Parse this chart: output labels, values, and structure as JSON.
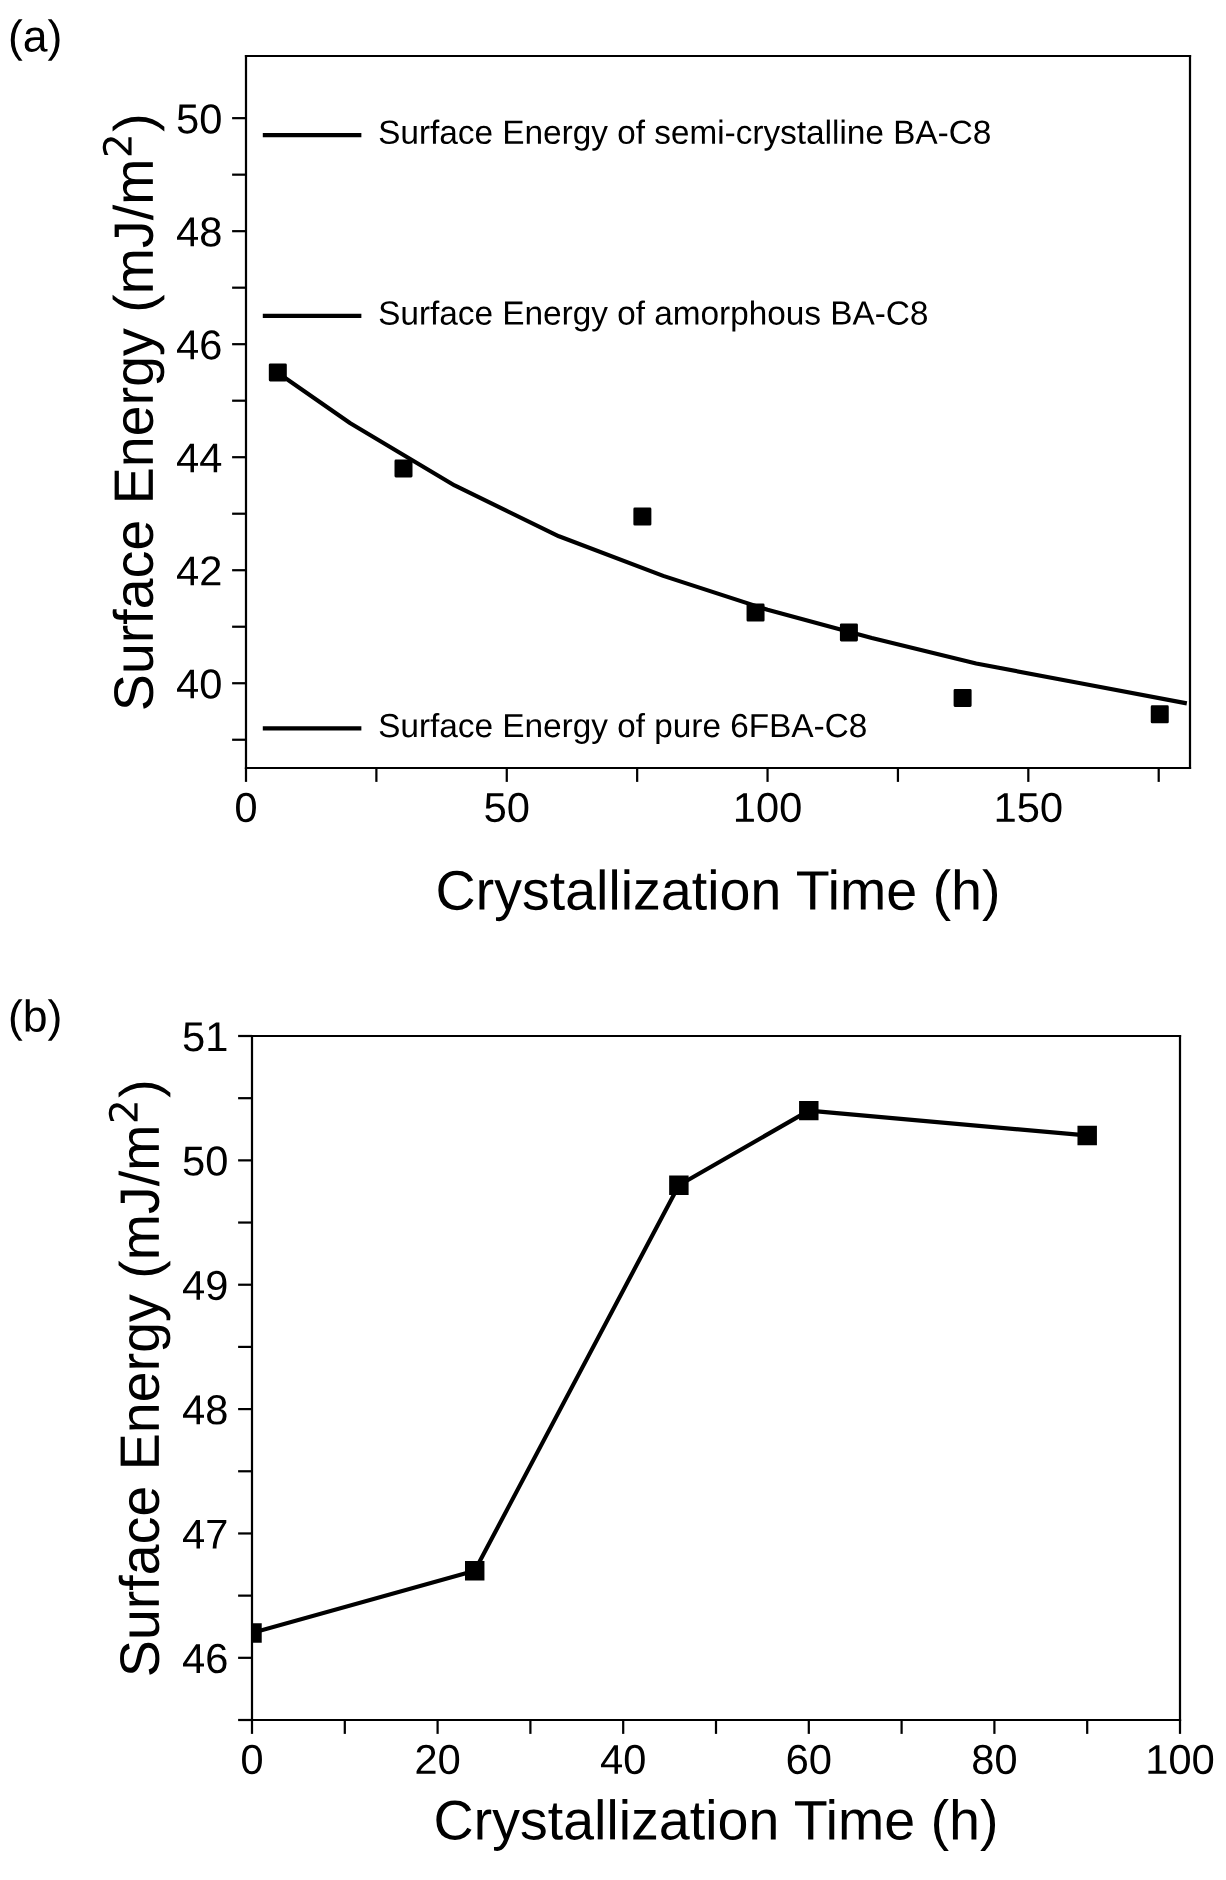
{
  "chart_data": [
    {
      "type": "scatter",
      "title": "(a)",
      "xlabel": "Crystallization Time (h)",
      "ylabel": "Surface Energy (mJ/m$^{2}$)",
      "xlim": [
        0,
        181
      ],
      "ylim": [
        38.5,
        51.1
      ],
      "xticks": [
        0,
        {
          "value": 25,
          "label": null
        },
        50,
        {
          "value": 75,
          "label": null
        },
        100,
        {
          "value": 125,
          "label": null
        },
        150,
        {
          "value": 175,
          "label": null
        }
      ],
      "yticks": [
        {
          "value": 39,
          "label": null
        },
        40,
        {
          "value": 41,
          "label": null
        },
        42,
        {
          "value": 43,
          "label": null
        },
        44,
        {
          "value": 45,
          "label": null
        },
        46,
        {
          "value": 47,
          "label": null
        },
        48,
        {
          "value": 49,
          "label": null
        },
        50
      ],
      "grid": false,
      "legend": false,
      "series": [
        {
          "type": "scatter",
          "color": "#000000",
          "marker": "square",
          "x": [
            6.1,
            30.2,
            76,
            97.7,
            115.6,
            137.4,
            175.2
          ],
          "values": [
            45.5,
            43.8,
            42.95,
            41.25,
            40.9,
            39.74,
            39.45
          ]
        },
        {
          "type": "line",
          "color": "#000000",
          "marker": "none",
          "line_style": "solid",
          "x": [
            6,
            20,
            40,
            60,
            80,
            100,
            120,
            140,
            160,
            180
          ],
          "values": [
            45.5,
            44.6,
            43.5,
            42.6,
            41.9,
            41.3,
            40.8,
            40.35,
            40.0,
            39.65
          ]
        }
      ],
      "ref_lines": [
        {
          "axis": "y",
          "value": 49.7,
          "label": "Surface Energy of semi-crystalline BA-C8",
          "color": "#000000",
          "line_style": "solid"
        },
        {
          "axis": "y",
          "value": 46.5,
          "label": "Surface Energy of amorphous BA-C8",
          "color": "#000000",
          "line_style": "solid"
        },
        {
          "axis": "y",
          "value": 39.2,
          "label": "Surface Energy of pure 6FBA-C8",
          "color": "#000000",
          "line_style": "solid"
        }
      ]
    },
    {
      "type": "line",
      "title": "(b)",
      "xlabel": "Crystallization Time (h)",
      "ylabel": "Surface Energy (mJ/m$^{2}$)",
      "xlim": [
        0,
        100
      ],
      "ylim": [
        45.5,
        51
      ],
      "xticks": [
        0,
        {
          "value": 10,
          "label": null
        },
        20,
        {
          "value": 30,
          "label": null
        },
        40,
        {
          "value": 50,
          "label": null
        },
        60,
        {
          "value": 70,
          "label": null
        },
        80,
        {
          "value": 90,
          "label": null
        },
        100
      ],
      "yticks": [
        {
          "value": 45.5,
          "label": null
        },
        46,
        {
          "value": 46.5,
          "label": null
        },
        47,
        {
          "value": 47.5,
          "label": null
        },
        48,
        {
          "value": 48.5,
          "label": null
        },
        49,
        {
          "value": 49.5,
          "label": null
        },
        50,
        {
          "value": 50.5,
          "label": null
        },
        51
      ],
      "grid": false,
      "legend": false,
      "marker": "square",
      "line_style": "solid",
      "series": [
        {
          "color": "#000000",
          "x": [
            0,
            24,
            46,
            60,
            90
          ],
          "values": [
            46.2,
            46.7,
            49.8,
            50.4,
            50.2
          ]
        }
      ]
    }
  ]
}
